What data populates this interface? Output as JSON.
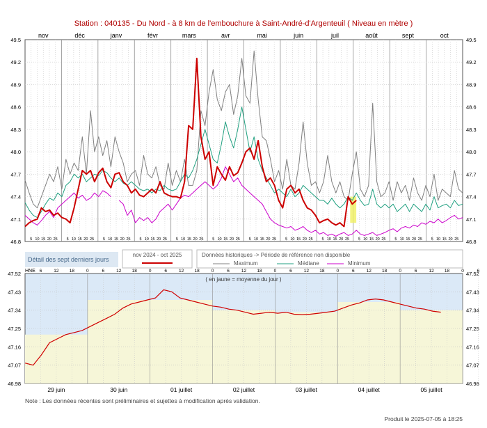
{
  "title": "Station : 040135      -   Du Nord - à 8 km de l'embouchure à Saint-André-d'Argenteuil   ( Niveau en mètre )",
  "colors": {
    "title": "#b00000",
    "current": "#cc0000",
    "maximum": "#808080",
    "median": "#20a080",
    "minimum": "#cc00cc",
    "legend_panel": "#dde8f3",
    "blue_zone": "#dbe9f7",
    "yellow_zone": "#f6f6d8",
    "detail_line": "#d00000"
  },
  "legend": {
    "detail_label": "Détail des sept derniers jours",
    "period": "nov 2024 - oct 2025",
    "historical_title": "Données historiques -> Période de référence non disponible",
    "maximum": "Maximum",
    "median": "Médiane",
    "minimum": "Minimum"
  },
  "detail": {
    "hne": "HNE",
    "note_yellow": "( en jaune = moyenne du jour )"
  },
  "footer": {
    "note": "Note : Les données récentes sont préliminaires et sujettes à modification après validation.",
    "produced": "Produit le 2025-07-05 à 18:25"
  },
  "chart_data": [
    {
      "type": "line",
      "months": [
        "nov",
        "déc",
        "janv",
        "févr",
        "mars",
        "avr",
        "mai",
        "juin",
        "juil",
        "août",
        "sept",
        "oct"
      ],
      "day_ticks": [
        "5",
        "10",
        "15",
        "20",
        "25"
      ],
      "y_ticks": [
        "49.5",
        "49.2",
        "48.9",
        "48.6",
        "48.3",
        "48.0",
        "47.7",
        "47.4",
        "47.1",
        "46.8"
      ],
      "ylim": [
        46.8,
        49.5
      ],
      "grid": true,
      "series": [
        {
          "name": "Maximum",
          "values": [
            47.62,
            47.45,
            47.3,
            47.25,
            47.4,
            47.55,
            47.7,
            47.6,
            47.8,
            47.5,
            47.9,
            47.7,
            47.85,
            47.75,
            48.2,
            47.7,
            48.55,
            48.0,
            48.2,
            47.95,
            48.15,
            47.8,
            48.2,
            48.0,
            47.85,
            47.6,
            47.7,
            47.75,
            47.55,
            47.95,
            47.7,
            47.65,
            47.8,
            47.55,
            47.5,
            47.85,
            47.55,
            47.75,
            47.6,
            47.9,
            47.55,
            47.55,
            47.75,
            48.55,
            48.35,
            48.8,
            49.1,
            48.7,
            48.55,
            48.8,
            48.9,
            48.5,
            48.75,
            49.25,
            48.75,
            48.65,
            49.35,
            48.7,
            48.2,
            48.15,
            47.9,
            47.6,
            47.75,
            47.5,
            47.9,
            47.55,
            47.5,
            47.85,
            48.4,
            47.85,
            47.55,
            47.6,
            47.45,
            47.6,
            47.95,
            47.6,
            47.45,
            47.6,
            47.4,
            47.35,
            47.7,
            48.0,
            47.5,
            47.4,
            47.55,
            48.65,
            47.6,
            47.4,
            47.45,
            47.6,
            47.35,
            47.6,
            47.45,
            47.55,
            47.35,
            47.65,
            47.45,
            47.35,
            47.55,
            47.4,
            47.7,
            47.35,
            47.5,
            47.45,
            47.4,
            47.75,
            47.5,
            47.45
          ]
        },
        {
          "name": "Médiane",
          "values": [
            47.32,
            47.22,
            47.15,
            47.12,
            47.2,
            47.3,
            47.38,
            47.35,
            47.45,
            47.4,
            47.55,
            47.6,
            47.7,
            47.65,
            47.7,
            47.6,
            47.65,
            47.7,
            47.68,
            47.75,
            47.72,
            47.65,
            47.6,
            47.65,
            47.58,
            47.55,
            47.6,
            47.55,
            47.5,
            47.48,
            47.5,
            47.45,
            47.5,
            47.48,
            47.55,
            47.5,
            47.48,
            47.5,
            47.6,
            47.7,
            47.65,
            47.75,
            47.9,
            48.1,
            48.3,
            48.1,
            47.9,
            47.85,
            48.1,
            48.4,
            48.2,
            48.05,
            48.3,
            48.6,
            48.3,
            48.0,
            48.2,
            47.9,
            47.75,
            47.65,
            47.55,
            47.45,
            47.5,
            47.45,
            47.4,
            47.5,
            47.4,
            47.45,
            47.55,
            47.5,
            47.45,
            47.4,
            47.35,
            47.35,
            47.3,
            47.38,
            47.3,
            47.25,
            47.3,
            47.4,
            47.35,
            47.45,
            47.35,
            47.28,
            47.3,
            47.5,
            47.3,
            47.25,
            47.3,
            47.25,
            47.3,
            47.2,
            47.25,
            47.3,
            47.2,
            47.3,
            47.25,
            47.2,
            47.3,
            47.22,
            47.4,
            47.25,
            47.28,
            47.3,
            47.25,
            47.35,
            47.28,
            47.3
          ]
        },
        {
          "name": "Minimum",
          "values": [
            47.15,
            47.1,
            47.05,
            47.02,
            47.08,
            47.15,
            47.2,
            47.12,
            47.25,
            47.3,
            47.35,
            47.4,
            47.45,
            47.38,
            47.42,
            47.35,
            47.38,
            47.45,
            47.4,
            47.48,
            47.45,
            47.4,
            null,
            47.35,
            47.3,
            47.15,
            47.22,
            47.05,
            47.12,
            47.08,
            47.12,
            47.05,
            47.1,
            47.2,
            47.25,
            47.3,
            47.22,
            47.3,
            47.38,
            47.42,
            47.4,
            47.45,
            47.5,
            47.55,
            47.6,
            47.55,
            47.5,
            47.55,
            47.65,
            47.8,
            47.7,
            47.6,
            47.65,
            47.55,
            47.5,
            47.45,
            47.4,
            47.35,
            47.3,
            47.2,
            47.1,
            47.05,
            47.02,
            47.0,
            46.98,
            47.0,
            46.95,
            46.97,
            47.0,
            46.95,
            46.92,
            46.95,
            46.9,
            46.92,
            46.88,
            46.9,
            46.87,
            46.9,
            46.92,
            46.88,
            46.9,
            46.95,
            46.9,
            46.88,
            46.9,
            46.92,
            46.88,
            46.9,
            46.92,
            46.95,
            46.97,
            46.93,
            46.98,
            47.0,
            46.98,
            47.02,
            47.0,
            47.05,
            47.03,
            47.07,
            47.05,
            47.1,
            47.05,
            47.08,
            47.12,
            47.15,
            47.1,
            47.12
          ]
        },
        {
          "name": "nov 2024 - oct 2025",
          "values": [
            47.0,
            47.05,
            47.08,
            47.1,
            47.25,
            47.2,
            47.22,
            47.15,
            47.18,
            47.12,
            47.1,
            47.05,
            47.25,
            47.5,
            47.75,
            47.7,
            47.75,
            47.6,
            47.72,
            47.78,
            47.6,
            47.52,
            47.7,
            47.72,
            47.6,
            47.55,
            47.45,
            47.5,
            47.42,
            47.4,
            47.45,
            47.5,
            47.45,
            47.6,
            47.45,
            47.42,
            47.4,
            47.4,
            47.38,
            47.6,
            48.35,
            48.3,
            49.25,
            48.2,
            47.9,
            48.0,
            47.55,
            47.8,
            47.7,
            47.62,
            47.8,
            47.68,
            47.72,
            47.85,
            48.0,
            48.05,
            47.9,
            48.15,
            47.8,
            47.6,
            47.65,
            47.55,
            47.35,
            47.25,
            47.5,
            47.55,
            47.45,
            47.5,
            47.35,
            47.25,
            47.22,
            47.15,
            47.05,
            47.08,
            47.1,
            47.05,
            47.02,
            47.05,
            47.0,
            47.4,
            47.3,
            47.35,
            null,
            null,
            null,
            null,
            null,
            null,
            null,
            null,
            null,
            null,
            null,
            null,
            null,
            null,
            null,
            null,
            null,
            null,
            null,
            null,
            null,
            null,
            null,
            null,
            null,
            null
          ]
        }
      ]
    },
    {
      "type": "line",
      "title": "Détail des sept derniers jours",
      "x_ticks_top": [
        "6",
        "12",
        "18",
        "0",
        "6",
        "12",
        "18",
        "0",
        "6",
        "12",
        "18",
        "0",
        "6",
        "12",
        "18",
        "0",
        "6",
        "12",
        "18",
        "0",
        "6",
        "12",
        "18",
        "0",
        "6",
        "12",
        "18",
        "0",
        "6",
        "12",
        "18"
      ],
      "x_day_labels": [
        "29 juin",
        "30 juin",
        "01 juillet",
        "02 juillet",
        "03 juillet",
        "04 juillet",
        "05 juillet"
      ],
      "y_ticks": [
        "47.52",
        "47.43",
        "47.34",
        "47.25",
        "47.16",
        "47.07",
        "46.98"
      ],
      "ylim": [
        46.98,
        47.52
      ],
      "daily_mean": [
        47.22,
        47.39,
        47.39,
        47.34,
        47.33,
        47.38,
        47.34
      ],
      "series": [
        {
          "name": "Niveau",
          "values": [
            47.08,
            47.07,
            47.12,
            47.18,
            47.2,
            47.22,
            47.23,
            47.24,
            47.26,
            47.28,
            47.3,
            47.32,
            47.35,
            47.37,
            47.38,
            47.39,
            47.4,
            47.44,
            47.43,
            47.4,
            47.39,
            47.38,
            47.37,
            47.36,
            47.355,
            47.345,
            47.34,
            47.33,
            47.32,
            47.325,
            47.33,
            47.325,
            47.33,
            47.32,
            47.318,
            47.32,
            47.325,
            47.33,
            47.335,
            47.35,
            47.365,
            47.375,
            47.39,
            47.395,
            47.39,
            47.38,
            47.37,
            47.36,
            47.35,
            47.345,
            47.335,
            47.33
          ]
        }
      ]
    }
  ]
}
